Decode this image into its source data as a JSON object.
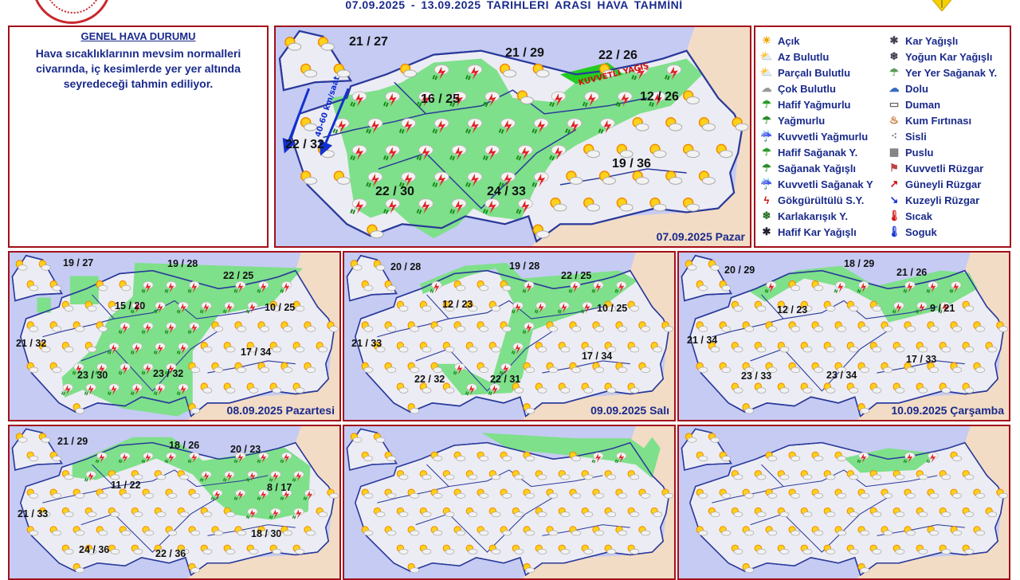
{
  "header": {
    "title": "07.09.2025  -  13.09.2025   TARIHLERI ARASI HAVA TAHMİNİ"
  },
  "general": {
    "heading": "GENEL HAVA DURUMU",
    "text": "Hava sıcaklıklarının mevsim normalleri civarında, iç kesimlerde yer yer altında seyredeceği tahmin ediliyor."
  },
  "legend": {
    "left": [
      {
        "label": "Açık",
        "icon": "sun-icon"
      },
      {
        "label": "Az Bulutlu",
        "icon": "sun-small-cloud-icon"
      },
      {
        "label": "Parçalı Bulutlu",
        "icon": "sun-cloud-icon"
      },
      {
        "label": "Çok Bulutlu",
        "icon": "cloud-icon"
      },
      {
        "label": "Hafif Yağmurlu",
        "icon": "light-rain-icon"
      },
      {
        "label": "Yağmurlu",
        "icon": "rain-icon"
      },
      {
        "label": "Kuvvetli Yağmurlu",
        "icon": "heavy-rain-icon"
      },
      {
        "label": "Hafif Sağanak Y.",
        "icon": "light-shower-icon"
      },
      {
        "label": "Sağanak Yağışlı",
        "icon": "shower-icon"
      },
      {
        "label": "Kuvvetli Sağanak Y",
        "icon": "heavy-shower-icon"
      },
      {
        "label": "Gökgürültülü S.Y.",
        "icon": "thunderstorm-icon"
      },
      {
        "label": "Karlakarışık Y.",
        "icon": "sleet-icon"
      },
      {
        "label": "Hafif Kar Yağışlı",
        "icon": "light-snow-icon"
      }
    ],
    "right": [
      {
        "label": "Kar Yağışlı",
        "icon": "snow-icon"
      },
      {
        "label": "Yoğun Kar Yağışlı",
        "icon": "heavy-snow-icon"
      },
      {
        "label": "Yer Yer Sağanak Y.",
        "icon": "scattered-shower-icon"
      },
      {
        "label": "Dolu",
        "icon": "hail-icon"
      },
      {
        "label": "Duman",
        "icon": "smoke-icon"
      },
      {
        "label": "Kum Fırtınası",
        "icon": "sandstorm-icon"
      },
      {
        "label": "Sisli",
        "icon": "fog-icon"
      },
      {
        "label": "Puslu",
        "icon": "haze-icon"
      },
      {
        "label": "Kuvvetli Rüzgar",
        "icon": "strong-wind-icon"
      },
      {
        "label": "Güneyli Rüzgar",
        "icon": "south-wind-arrow-icon"
      },
      {
        "label": "Kuzeyli Rüzgar",
        "icon": "north-wind-arrow-icon"
      },
      {
        "label": "Sıcak",
        "icon": "hot-thermometer-icon"
      },
      {
        "label": "Soguk",
        "icon": "cold-thermometer-icon"
      }
    ]
  },
  "colors": {
    "sea": "#c5cbf3",
    "land": "#ececf4",
    "rain_area": "#7ee08a",
    "border": "#2a3a9a",
    "neighbor": "#f2dcc6",
    "frame": "#a3101a",
    "text": "#1a2a8c"
  },
  "main_map": {
    "date": "07.09.2025 Pazar",
    "wind_label": "40-60 km/saat",
    "warning": "KUVVETLİ YAĞIŞ",
    "temps": [
      "21 / 27",
      "21 / 29",
      "22 / 26",
      "16 / 25",
      "12 / 26",
      "22 / 32",
      "19 / 36",
      "22 / 30",
      "24 / 33"
    ]
  },
  "days": [
    {
      "date": "08.09.2025 Pazartesi",
      "temps": [
        "19 / 27",
        "19 / 28",
        "22 / 25",
        "15 / 20",
        "10 / 25",
        "21 / 32",
        "17 / 34",
        "23 / 30",
        "23 / 32"
      ]
    },
    {
      "date": "09.09.2025 Salı",
      "temps": [
        "20 / 28",
        "19 / 28",
        "22 / 25",
        "12 / 23",
        "10 / 25",
        "21 / 33",
        "17 / 34",
        "22 / 32",
        "22 / 31"
      ]
    },
    {
      "date": "10.09.2025 Çarşamba",
      "temps": [
        "20 / 29",
        "18 / 29",
        "21 / 26",
        "12 / 23",
        "9 / 21",
        "21 / 34",
        "17 / 33",
        "23 / 33",
        "23 / 34"
      ]
    },
    {
      "temps": [
        "21 / 29",
        "18 / 26",
        "20 / 23",
        "11 / 22",
        "8 / 17",
        "21 / 33",
        "18 / 30",
        "24 / 36",
        "22 / 36"
      ]
    },
    {},
    {}
  ]
}
